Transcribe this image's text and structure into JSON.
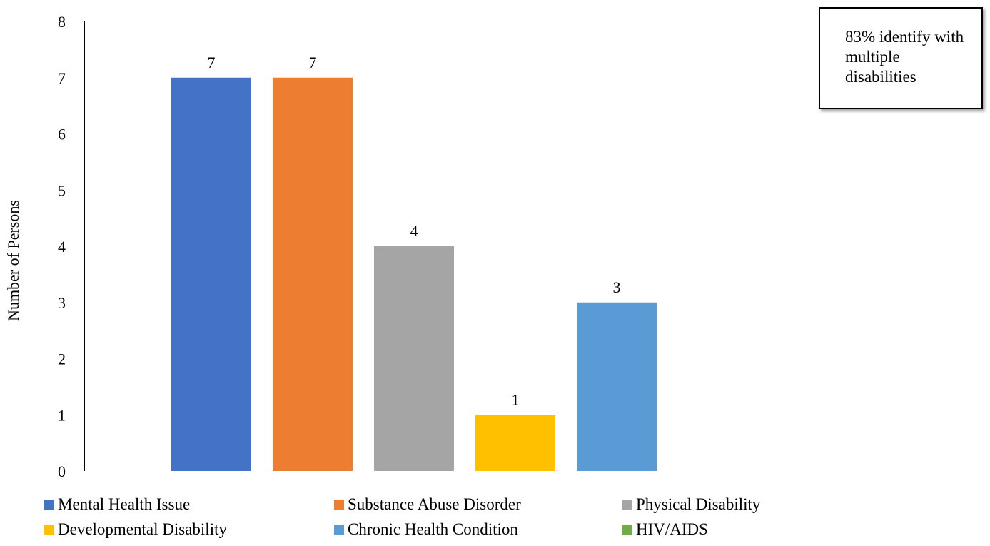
{
  "chart_data": {
    "type": "bar",
    "categories": [
      "Mental Health Issue",
      "Substance Abuse Disorder",
      "Physical Disability",
      "Developmental Disability",
      "Chronic Health Condition",
      "HIV/AIDS"
    ],
    "values": [
      7,
      7,
      4,
      1,
      3,
      0
    ],
    "colors": [
      "#4472C4",
      "#ED7D31",
      "#A5A5A5",
      "#FFC000",
      "#5B9BD5",
      "#70AD47"
    ],
    "data_labels": [
      "7",
      "7",
      "4",
      "1",
      "3",
      ""
    ],
    "title": "",
    "xlabel": "",
    "ylabel": "Number of Persons",
    "ylim": [
      0,
      8
    ],
    "yticks": [
      "0",
      "1",
      "2",
      "3",
      "4",
      "5",
      "6",
      "7",
      "8"
    ],
    "grid": false,
    "legend_position": "bottom",
    "annotation": "83% identify with multiple disabilities"
  }
}
